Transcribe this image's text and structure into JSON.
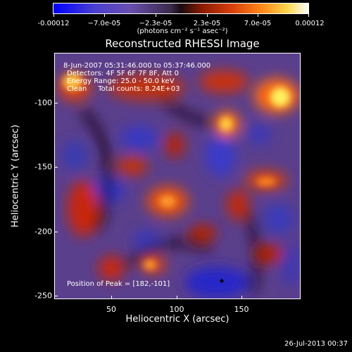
{
  "colorbar": {
    "ticks": [
      "-0.00012",
      "−7.0e-05",
      "−2.3e-05",
      "2.3e-05",
      "7.0e-05",
      "0.00012"
    ],
    "units": "(photons cm⁻² s⁻¹ asec⁻²)"
  },
  "title": "Reconstructed RHESSI Image",
  "info": {
    "time_range": "8-Jun-2007 05:31:46.000 to 05:37:46.000",
    "detectors": "Detectors: 4F 5F 6F 7F 8F, Att 0",
    "energy": "Energy Range: 25.0 - 50.0 keV",
    "method": "Clean     Total counts: 8.24E+03",
    "peak": "Position of Peak = [182,-101]"
  },
  "axes": {
    "xlabel": "Heliocentric X (arcsec)",
    "ylabel": "Heliocentric Y (arcsec)",
    "xticks": [
      "50",
      "100",
      "150"
    ],
    "yticks": [
      "-100",
      "-150",
      "-200",
      "-250"
    ]
  },
  "timestamp": "26-Jul-2013 00:37"
}
